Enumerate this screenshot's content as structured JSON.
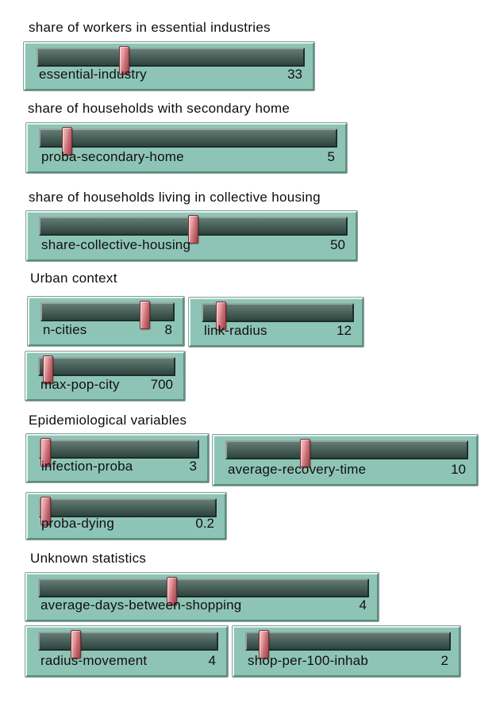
{
  "app": {
    "description": "NetLogo-style model parameter panel with slider widgets grouped under section headings"
  },
  "colors": {
    "background": "#ffffff",
    "widget_face": "#8ec4b6",
    "widget_bevel_light": "#dff4ee",
    "widget_bevel_dark": "#5d9282",
    "groove_top": "#647c74",
    "groove_bottom": "#2e443d",
    "handle_red": "#c66d74",
    "handle_highlight": "#f1bfc2",
    "handle_border": "#772b32",
    "text": "#101010"
  },
  "section_titles": [
    "share of workers in essential industries",
    "share of households with secondary home",
    "share of households living in collective housing",
    "Urban context",
    "Epidemiological variables",
    "Unknown statistics"
  ],
  "sliders": [
    {
      "label": "essential-industry",
      "value": "33",
      "fraction": 0.32
    },
    {
      "label": "proba-secondary-home",
      "value": "5",
      "fraction": 0.08
    },
    {
      "label": "share-collective-housing",
      "value": "50",
      "fraction": 0.5
    },
    {
      "label": "n-cities",
      "value": "8",
      "fraction": 0.8
    },
    {
      "label": "link-radius",
      "value": "12",
      "fraction": 0.1
    },
    {
      "label": "max-pop-city",
      "value": "700",
      "fraction": 0.04
    },
    {
      "label": "infection-proba",
      "value": "3",
      "fraction": 0.01
    },
    {
      "label": "average-recovery-time",
      "value": "10",
      "fraction": 0.32
    },
    {
      "label": "proba-dying",
      "value": "0.2",
      "fraction": 0.01
    },
    {
      "label": "average-days-between-shopping",
      "value": "4",
      "fraction": 0.4
    },
    {
      "label": "radius-movement",
      "value": "4",
      "fraction": 0.19
    },
    {
      "label": "shop-per-100-inhab",
      "value": "2",
      "fraction": 0.07
    }
  ]
}
